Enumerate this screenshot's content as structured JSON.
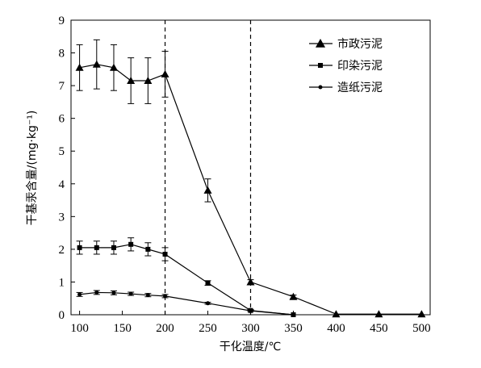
{
  "chart_data": {
    "type": "line",
    "xlabel": "干化温度/℃",
    "ylabel": "干基汞含量/(mg·kg⁻¹)",
    "xlim": [
      90,
      510
    ],
    "ylim": [
      0,
      9
    ],
    "x_ticks": [
      100,
      150,
      200,
      250,
      300,
      350,
      400,
      450,
      500
    ],
    "y_ticks": [
      0,
      1,
      2,
      3,
      4,
      5,
      6,
      7,
      8,
      9
    ],
    "vertical_reference_lines": [
      200,
      300
    ],
    "legend_position": "top-right",
    "series": [
      {
        "name": "市政污泥",
        "marker": "triangle",
        "points": [
          {
            "x": 100,
            "y": 7.55,
            "err": 0.7
          },
          {
            "x": 120,
            "y": 7.65,
            "err": 0.75
          },
          {
            "x": 140,
            "y": 7.55,
            "err": 0.7
          },
          {
            "x": 160,
            "y": 7.15,
            "err": 0.7
          },
          {
            "x": 180,
            "y": 7.15,
            "err": 0.7
          },
          {
            "x": 200,
            "y": 7.35,
            "err": 0.7
          },
          {
            "x": 250,
            "y": 3.8,
            "err": 0.35
          },
          {
            "x": 300,
            "y": 1.0,
            "err": 0.07
          },
          {
            "x": 350,
            "y": 0.55,
            "err": 0.05
          },
          {
            "x": 400,
            "y": 0.02,
            "err": 0
          },
          {
            "x": 450,
            "y": 0.02,
            "err": 0
          },
          {
            "x": 500,
            "y": 0.02,
            "err": 0
          }
        ]
      },
      {
        "name": "印染污泥",
        "marker": "square",
        "points": [
          {
            "x": 100,
            "y": 2.05,
            "err": 0.2
          },
          {
            "x": 120,
            "y": 2.05,
            "err": 0.2
          },
          {
            "x": 140,
            "y": 2.05,
            "err": 0.2
          },
          {
            "x": 160,
            "y": 2.15,
            "err": 0.2
          },
          {
            "x": 180,
            "y": 2.0,
            "err": 0.2
          },
          {
            "x": 200,
            "y": 1.85,
            "err": 0.2
          },
          {
            "x": 250,
            "y": 0.97,
            "err": 0.07
          },
          {
            "x": 300,
            "y": 0.13,
            "err": 0.03
          },
          {
            "x": 350,
            "y": 0.0,
            "err": 0
          }
        ]
      },
      {
        "name": "造纸污泥",
        "marker": "dot",
        "points": [
          {
            "x": 100,
            "y": 0.62,
            "err": 0.06
          },
          {
            "x": 120,
            "y": 0.68,
            "err": 0.06
          },
          {
            "x": 140,
            "y": 0.67,
            "err": 0.06
          },
          {
            "x": 160,
            "y": 0.64,
            "err": 0.05
          },
          {
            "x": 180,
            "y": 0.6,
            "err": 0.05
          },
          {
            "x": 200,
            "y": 0.57,
            "err": 0.05
          },
          {
            "x": 250,
            "y": 0.35,
            "err": 0.03
          },
          {
            "x": 300,
            "y": 0.12,
            "err": 0.02
          },
          {
            "x": 350,
            "y": 0.0,
            "err": 0
          }
        ]
      }
    ]
  }
}
